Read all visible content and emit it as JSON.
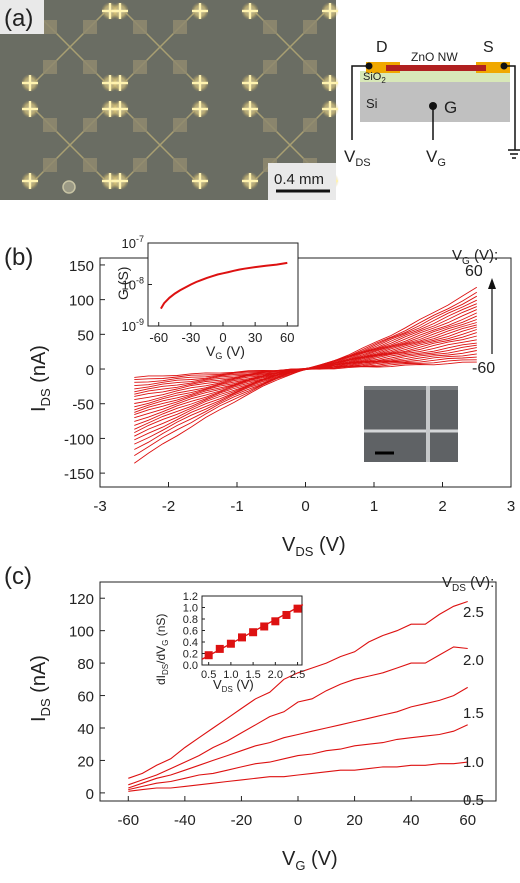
{
  "panel_a": {
    "label": "(a)",
    "scale_bar_label": "0.4 mm",
    "schematic": {
      "drain": "D",
      "source": "S",
      "nanowire": "ZnO NW",
      "oxide_main": "SiO",
      "oxide_sub": "2",
      "substrate": "Si",
      "gate": "G",
      "vds_main": "V",
      "vds_sub": "DS",
      "vg_main": "V",
      "vg_sub": "G"
    },
    "colors": {
      "electrode": "#f0a800",
      "nanowire": "#b02020",
      "oxide": "#d8e8b8",
      "substrate": "#c0c0c0"
    }
  },
  "chart_data": [
    {
      "id": "b-main",
      "panel_label": "(b)",
      "type": "line",
      "xlabel_main": "V",
      "xlabel_sub": "DS",
      "xlabel_unit": " (V)",
      "ylabel_main": "I",
      "ylabel_sub": "DS",
      "ylabel_unit": " (nA)",
      "xlim": [
        -3,
        3
      ],
      "ylim": [
        -170,
        160
      ],
      "xticks": [
        -3,
        -2,
        -1,
        0,
        1,
        2,
        3
      ],
      "yticks": [
        -150,
        -100,
        -50,
        0,
        50,
        100,
        150
      ],
      "x_range": [
        -2.5,
        2.5
      ],
      "family_param": "V_G",
      "family_gate_values_V": [
        -60,
        -55,
        -50,
        -45,
        -40,
        -35,
        -30,
        -25,
        -20,
        -15,
        -10,
        -5,
        0,
        5,
        10,
        15,
        20,
        25,
        30,
        35,
        40,
        45,
        50,
        55,
        60
      ],
      "neg_end_current_nA": [
        -12,
        -16,
        -20,
        -24,
        -28,
        -32,
        -36,
        -40,
        -45,
        -50,
        -54,
        -58,
        -62,
        -66,
        -71,
        -76,
        -81,
        -86,
        -91,
        -97,
        -103,
        -109,
        -116,
        -124,
        -135
      ],
      "pos_end_current_nA": [
        10,
        14,
        18,
        22,
        26,
        30,
        34,
        38,
        43,
        48,
        52,
        56,
        60,
        64,
        68,
        72,
        76,
        80,
        85,
        90,
        95,
        100,
        105,
        110,
        117
      ],
      "legend_title_main": "V",
      "legend_title_sub": "G",
      "legend_title_unit": " (V):",
      "legend_top": "60",
      "legend_bottom": "-60",
      "color": "#dd1111"
    },
    {
      "id": "b-inset",
      "type": "line",
      "ylog": true,
      "xlabel_main": "V",
      "xlabel_sub": "G",
      "xlabel_unit": " (V)",
      "ylabel": "G (S)",
      "xlim": [
        -70,
        70
      ],
      "ylim_exp": [
        -9,
        -7
      ],
      "xticks": [
        -60,
        -30,
        0,
        30,
        60
      ],
      "ytick_exps": [
        -9,
        -8,
        -7
      ],
      "ytick_base": "10",
      "x": [
        -58,
        -55,
        -50,
        -45,
        -40,
        -35,
        -30,
        -25,
        -20,
        -15,
        -10,
        -5,
        0,
        5,
        10,
        15,
        20,
        30,
        40,
        50,
        60
      ],
      "log10_y": [
        -8.58,
        -8.45,
        -8.32,
        -8.22,
        -8.14,
        -8.07,
        -8.0,
        -7.94,
        -7.89,
        -7.84,
        -7.8,
        -7.76,
        -7.73,
        -7.7,
        -7.67,
        -7.64,
        -7.62,
        -7.58,
        -7.55,
        -7.52,
        -7.48
      ],
      "color": "#dd1111"
    },
    {
      "id": "c-main",
      "panel_label": "(c)",
      "type": "line",
      "xlabel_main": "V",
      "xlabel_sub": "G",
      "xlabel_unit": " (V)",
      "ylabel_main": "I",
      "ylabel_sub": "DS",
      "ylabel_unit": " (nA)",
      "xlim": [
        -70,
        70
      ],
      "ylim": [
        -5,
        130
      ],
      "xticks": [
        -60,
        -40,
        -20,
        0,
        20,
        40,
        60
      ],
      "yticks": [
        0,
        20,
        40,
        60,
        80,
        100,
        120
      ],
      "x": [
        -60,
        -55,
        -50,
        -45,
        -40,
        -35,
        -30,
        -25,
        -20,
        -15,
        -10,
        -5,
        0,
        5,
        10,
        15,
        20,
        25,
        30,
        35,
        40,
        45,
        50,
        55,
        60
      ],
      "series": [
        {
          "name": "0.5",
          "values": [
            1,
            2,
            3,
            3,
            4,
            5,
            6,
            7,
            8,
            9,
            10,
            10,
            11,
            12,
            13,
            14,
            14,
            15,
            16,
            16,
            17,
            17,
            18,
            18,
            19
          ]
        },
        {
          "name": "1.0",
          "values": [
            2,
            4,
            6,
            7,
            9,
            11,
            12,
            14,
            16,
            18,
            19,
            21,
            23,
            24,
            26,
            27,
            29,
            30,
            31,
            33,
            34,
            35,
            36,
            38,
            42
          ]
        },
        {
          "name": "1.5",
          "values": [
            3,
            6,
            9,
            11,
            14,
            17,
            20,
            23,
            26,
            29,
            31,
            34,
            36,
            38,
            40,
            42,
            44,
            46,
            48,
            50,
            53,
            55,
            57,
            60,
            65
          ]
        },
        {
          "name": "2.0",
          "values": [
            5,
            8,
            11,
            15,
            19,
            23,
            28,
            32,
            37,
            42,
            47,
            50,
            56,
            58,
            63,
            67,
            70,
            72,
            74,
            77,
            80,
            80,
            85,
            90,
            89
          ]
        },
        {
          "name": "2.5",
          "values": [
            9,
            12,
            17,
            21,
            28,
            34,
            40,
            46,
            52,
            58,
            62,
            70,
            74,
            77,
            80,
            84,
            87,
            93,
            97,
            100,
            104,
            104,
            110,
            115,
            118
          ]
        }
      ],
      "legend_title_main": "V",
      "legend_title_sub": "DS",
      "legend_title_unit": " (V):",
      "color": "#dd1111"
    },
    {
      "id": "c-inset",
      "type": "scatter",
      "xlabel_main": "V",
      "xlabel_sub": "DS",
      "xlabel_unit": " (V)",
      "ylabel_main": "dI",
      "ylabel_sub": "DS",
      "ylabel_mid": "/dV",
      "ylabel_sub2": "G",
      "ylabel_unit": " (nS)",
      "xlim": [
        0.35,
        2.6
      ],
      "ylim": [
        0,
        1.2
      ],
      "xticks": [
        0.5,
        1.0,
        1.5,
        2.0,
        2.5
      ],
      "xtick_labels": [
        "0.5",
        "1.0",
        "1.5",
        "2.0",
        "2.5"
      ],
      "yticks": [
        0.0,
        0.2,
        0.4,
        0.6,
        0.8,
        1.0,
        1.2
      ],
      "ytick_labels": [
        "0.0",
        "0.2",
        "0.4",
        "0.6",
        "0.8",
        "1.0",
        "1.2"
      ],
      "x": [
        0.5,
        0.75,
        1.0,
        1.25,
        1.5,
        1.75,
        2.0,
        2.25,
        2.5
      ],
      "values": [
        0.17,
        0.28,
        0.37,
        0.48,
        0.57,
        0.67,
        0.76,
        0.87,
        0.98
      ],
      "fit": [
        [
          0.35,
          0.1
        ],
        [
          2.62,
          1.05
        ]
      ],
      "color": "#dd1111"
    }
  ]
}
